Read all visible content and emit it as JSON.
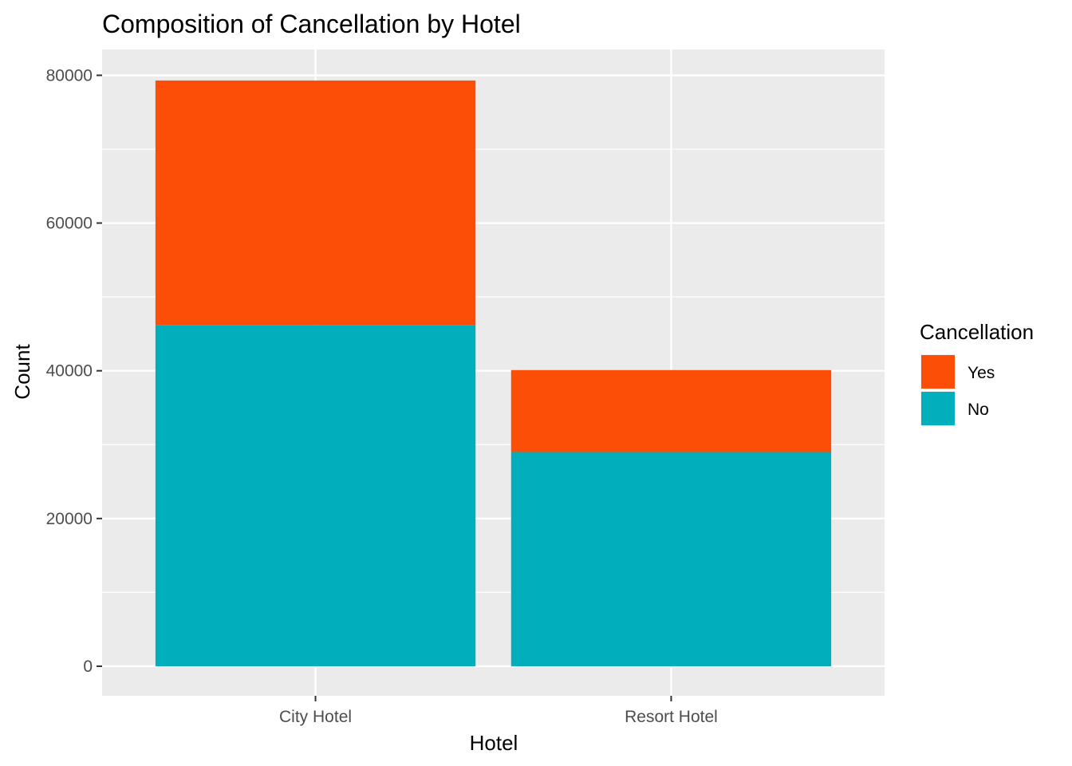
{
  "chart_data": {
    "type": "bar",
    "stacked": true,
    "title": "Composition of Cancellation by Hotel",
    "xlabel": "Hotel",
    "ylabel": "Count",
    "categories": [
      "City Hotel",
      "Resort Hotel"
    ],
    "series": [
      {
        "name": "No",
        "color": "#00AFBB",
        "values": [
          46200,
          29000
        ]
      },
      {
        "name": "Yes",
        "color": "#FC4E07",
        "values": [
          33100,
          11100
        ]
      }
    ],
    "ylim": [
      -4000,
      83500
    ],
    "y_ticks": [
      0,
      20000,
      40000,
      60000,
      80000
    ],
    "grid": true,
    "legend": {
      "title": "Cancellation",
      "position": "right",
      "entries": [
        {
          "label": "Yes",
          "color": "#FC4E07"
        },
        {
          "label": "No",
          "color": "#00AFBB"
        }
      ]
    },
    "panel_background": "#EBEBEB",
    "grid_color": "#FFFFFF"
  }
}
